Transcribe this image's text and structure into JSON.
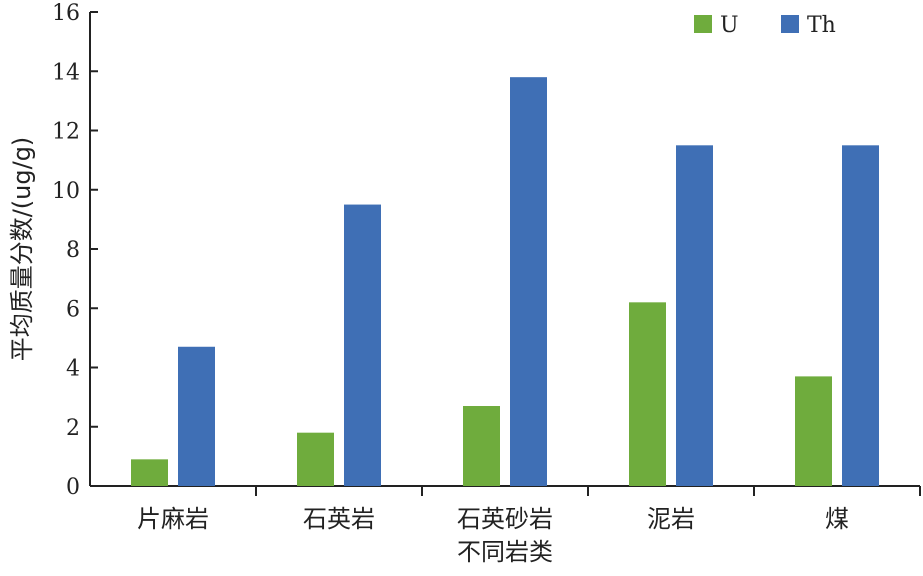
{
  "chart_data": {
    "type": "bar",
    "categories": [
      "片麻岩",
      "石英岩",
      "石英砂岩",
      "泥岩",
      "煤"
    ],
    "series": [
      {
        "name": "U",
        "color": "#6fac3d",
        "values": [
          0.9,
          1.8,
          2.7,
          6.2,
          3.7
        ]
      },
      {
        "name": "Th",
        "color": "#3f6fb5",
        "values": [
          4.7,
          9.5,
          13.8,
          11.5,
          11.5
        ]
      }
    ],
    "xlabel": "不同岩类",
    "ylabel": "平均质量分数/(ug/g)",
    "ylim": [
      0,
      16
    ],
    "yticks": [
      0,
      2,
      4,
      6,
      8,
      10,
      12,
      14,
      16
    ],
    "legend": "top-right",
    "grid": false
  }
}
